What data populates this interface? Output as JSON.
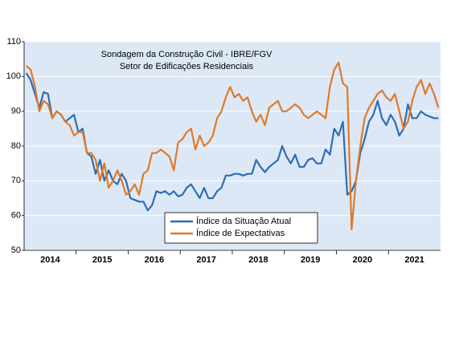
{
  "chart_data": {
    "type": "line",
    "title": "Sondagem da Construção Civil - IBRE/FGV",
    "subtitle": "Setor de Edificações Residenciais",
    "categories": [
      null,
      null,
      null,
      null,
      null,
      null,
      "2014",
      null,
      null,
      null,
      null,
      null,
      null,
      null,
      null,
      null,
      null,
      null,
      "2015",
      null,
      null,
      null,
      null,
      null,
      null,
      null,
      null,
      null,
      null,
      null,
      "2016",
      null,
      null,
      null,
      null,
      null,
      null,
      null,
      null,
      null,
      null,
      null,
      "2017",
      null,
      null,
      null,
      null,
      null,
      null,
      null,
      null,
      null,
      null,
      null,
      "2018",
      null,
      null,
      null,
      null,
      null,
      null,
      null,
      null,
      null,
      null,
      null,
      "2019",
      null,
      null,
      null,
      null,
      null,
      null,
      null,
      null,
      null,
      null,
      null,
      "2020",
      null,
      null,
      null,
      null,
      null,
      null,
      null,
      null,
      null,
      null,
      null,
      "2021",
      null,
      null,
      null,
      null,
      null
    ],
    "series": [
      {
        "name": "Índice da Situação Atual",
        "color": "#2e6db4",
        "values": [
          101,
          99,
          95,
          91,
          95.5,
          95,
          88,
          90,
          89,
          87,
          88,
          89,
          84,
          85,
          78,
          77,
          72,
          76,
          70,
          73,
          70,
          69,
          72,
          70,
          65,
          64.5,
          64,
          64,
          61.5,
          63,
          67,
          66.5,
          67,
          66,
          67,
          65.5,
          66,
          68,
          69,
          67,
          65,
          68,
          65,
          65,
          67,
          68,
          71.5,
          71.5,
          72,
          72,
          71.5,
          72,
          72,
          76,
          74,
          72.5,
          74,
          75,
          76,
          80,
          77,
          75,
          77.5,
          74,
          74,
          76,
          76.5,
          75,
          75,
          79,
          77.5,
          85,
          83,
          87,
          66,
          67,
          70,
          78,
          82,
          87,
          89,
          93,
          88,
          86,
          89,
          87,
          83,
          85,
          92,
          88,
          88,
          90,
          89,
          88.5,
          88,
          88
        ]
      },
      {
        "name": "Índice de Expectativas",
        "color": "#e07a28",
        "values": [
          103,
          102,
          97,
          90,
          93,
          92,
          88,
          90,
          89,
          87,
          86,
          83,
          84,
          84,
          78,
          78,
          76,
          70,
          75,
          68,
          70,
          73,
          70,
          66,
          67,
          69,
          66,
          72,
          73,
          78,
          78,
          79,
          78,
          77,
          73,
          81,
          82,
          84,
          85,
          79,
          83,
          80,
          81,
          83,
          88,
          90,
          94,
          97,
          94,
          95,
          93,
          94,
          90,
          87,
          89,
          86,
          91,
          92,
          93,
          90,
          90,
          91,
          92,
          91,
          89,
          88,
          89,
          90,
          89,
          88,
          97,
          102,
          104,
          98,
          97,
          56,
          70,
          80,
          88,
          91,
          93,
          95,
          96,
          94,
          93,
          95,
          90,
          85,
          87,
          93,
          97,
          99,
          95,
          98,
          95,
          91
        ]
      }
    ],
    "ylim": [
      50,
      110
    ],
    "yticks": [
      50,
      60,
      70,
      80,
      90,
      100,
      110
    ],
    "grid": true,
    "legend": "bottom"
  }
}
